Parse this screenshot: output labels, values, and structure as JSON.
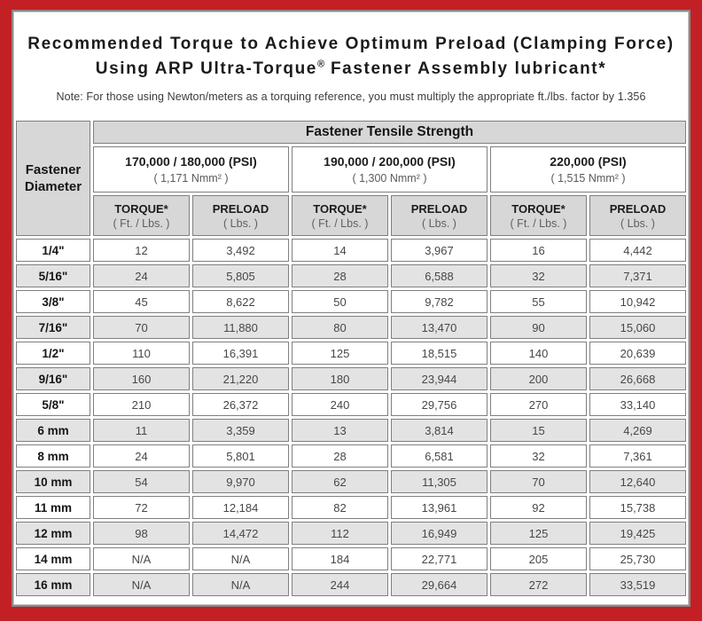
{
  "colors": {
    "frame_red": "#c32026",
    "header_gray": "#d7d7d7",
    "row_shade_gray": "#e3e3e3",
    "cell_border_gray": "#7f7f7f"
  },
  "header": {
    "title_line1": "Recommended Torque to Achieve Optimum Preload (Clamping Force)",
    "title_line2_prefix": "Using ARP Ultra-Torque",
    "title_line2_reg": "®",
    "title_line2_suffix": " Fastener Assembly lubricant*",
    "note": "Note: For those using Newton/meters as a torquing reference, you must multiply the appropriate ft./lbs. factor by 1.356"
  },
  "table": {
    "corner_header_line1": "Fastener",
    "corner_header_line2": "Diameter",
    "group_header": "Fastener Tensile Strength",
    "strength_groups": [
      {
        "psi": "170,000 / 180,000 (PSI)",
        "nmm": "( 1,171 Nmm² )"
      },
      {
        "psi": "190,000 / 200,000 (PSI)",
        "nmm": "( 1,300 Nmm² )"
      },
      {
        "psi": "220,000 (PSI)",
        "nmm": "( 1,515 Nmm² )"
      }
    ],
    "column_headers": [
      {
        "label": "TORQUE*",
        "unit": "( Ft. / Lbs. )"
      },
      {
        "label": "PRELOAD",
        "unit": "( Lbs. )"
      },
      {
        "label": "TORQUE*",
        "unit": "( Ft. / Lbs. )"
      },
      {
        "label": "PRELOAD",
        "unit": "( Lbs. )"
      },
      {
        "label": "TORQUE*",
        "unit": "( Ft. / Lbs. )"
      },
      {
        "label": "PRELOAD",
        "unit": "( Lbs. )"
      }
    ],
    "rows": [
      {
        "diameter": "1/4\"",
        "values": [
          "12",
          "3,492",
          "14",
          "3,967",
          "16",
          "4,442"
        ]
      },
      {
        "diameter": "5/16\"",
        "values": [
          "24",
          "5,805",
          "28",
          "6,588",
          "32",
          "7,371"
        ]
      },
      {
        "diameter": "3/8\"",
        "values": [
          "45",
          "8,622",
          "50",
          "9,782",
          "55",
          "10,942"
        ]
      },
      {
        "diameter": "7/16\"",
        "values": [
          "70",
          "11,880",
          "80",
          "13,470",
          "90",
          "15,060"
        ]
      },
      {
        "diameter": "1/2\"",
        "values": [
          "110",
          "16,391",
          "125",
          "18,515",
          "140",
          "20,639"
        ]
      },
      {
        "diameter": "9/16\"",
        "values": [
          "160",
          "21,220",
          "180",
          "23,944",
          "200",
          "26,668"
        ]
      },
      {
        "diameter": "5/8\"",
        "values": [
          "210",
          "26,372",
          "240",
          "29,756",
          "270",
          "33,140"
        ]
      },
      {
        "diameter": "6 mm",
        "values": [
          "11",
          "3,359",
          "13",
          "3,814",
          "15",
          "4,269"
        ]
      },
      {
        "diameter": "8 mm",
        "values": [
          "24",
          "5,801",
          "28",
          "6,581",
          "32",
          "7,361"
        ]
      },
      {
        "diameter": "10 mm",
        "values": [
          "54",
          "9,970",
          "62",
          "11,305",
          "70",
          "12,640"
        ]
      },
      {
        "diameter": "11 mm",
        "values": [
          "72",
          "12,184",
          "82",
          "13,961",
          "92",
          "15,738"
        ]
      },
      {
        "diameter": "12 mm",
        "values": [
          "98",
          "14,472",
          "112",
          "16,949",
          "125",
          "19,425"
        ]
      },
      {
        "diameter": "14 mm",
        "values": [
          "N/A",
          "N/A",
          "184",
          "22,771",
          "205",
          "25,730"
        ]
      },
      {
        "diameter": "16 mm",
        "values": [
          "N/A",
          "N/A",
          "244",
          "29,664",
          "272",
          "33,519"
        ]
      }
    ]
  }
}
